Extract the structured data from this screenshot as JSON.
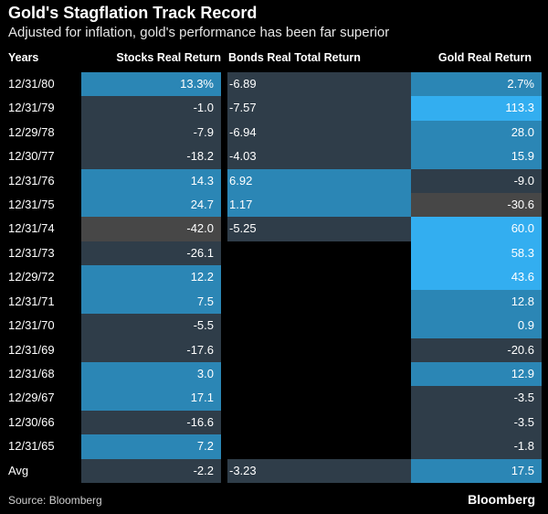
{
  "title": "Gold's Stagflation Track Record",
  "subtitle": "Adjusted for inflation, gold's performance has been far superior",
  "source": "Source: Bloomberg",
  "brand": "Bloomberg",
  "colors": {
    "dark_row": "#2f3d49",
    "mid_blue": "#2b86b5",
    "bright_blue": "#33aef0",
    "gray": "#474747",
    "background": "#000000"
  },
  "chart_data": {
    "type": "table",
    "columns": [
      "Years",
      "Stocks Real Return",
      "Bonds Real Total Return",
      "Gold Real Return"
    ],
    "rows": [
      {
        "year": "12/31/80",
        "stocks": "13.3%",
        "bonds": "-6.89",
        "gold": "2.7%"
      },
      {
        "year": "12/31/79",
        "stocks": "-1.0",
        "bonds": "-7.57",
        "gold": "113.3"
      },
      {
        "year": "12/29/78",
        "stocks": "-7.9",
        "bonds": "-6.94",
        "gold": "28.0"
      },
      {
        "year": "12/30/77",
        "stocks": "-18.2",
        "bonds": "-4.03",
        "gold": "15.9"
      },
      {
        "year": "12/31/76",
        "stocks": "14.3",
        "bonds": "6.92",
        "gold": "-9.0"
      },
      {
        "year": "12/31/75",
        "stocks": "24.7",
        "bonds": "1.17",
        "gold": "-30.6"
      },
      {
        "year": "12/31/74",
        "stocks": "-42.0",
        "bonds": "-5.25",
        "gold": "60.0"
      },
      {
        "year": "12/31/73",
        "stocks": "-26.1",
        "bonds": "",
        "gold": "58.3"
      },
      {
        "year": "12/29/72",
        "stocks": "12.2",
        "bonds": "",
        "gold": "43.6"
      },
      {
        "year": "12/31/71",
        "stocks": "7.5",
        "bonds": "",
        "gold": "12.8"
      },
      {
        "year": "12/31/70",
        "stocks": "-5.5",
        "bonds": "",
        "gold": "0.9"
      },
      {
        "year": "12/31/69",
        "stocks": "-17.6",
        "bonds": "",
        "gold": "-20.6"
      },
      {
        "year": "12/31/68",
        "stocks": "3.0",
        "bonds": "",
        "gold": "12.9"
      },
      {
        "year": "12/29/67",
        "stocks": "17.1",
        "bonds": "",
        "gold": "-3.5"
      },
      {
        "year": "12/30/66",
        "stocks": "-16.6",
        "bonds": "",
        "gold": "-3.5"
      },
      {
        "year": "12/31/65",
        "stocks": "7.2",
        "bonds": "",
        "gold": "-1.8"
      },
      {
        "year": "Avg",
        "stocks": "-2.2",
        "bonds": "-3.23",
        "gold": "17.5"
      }
    ]
  }
}
